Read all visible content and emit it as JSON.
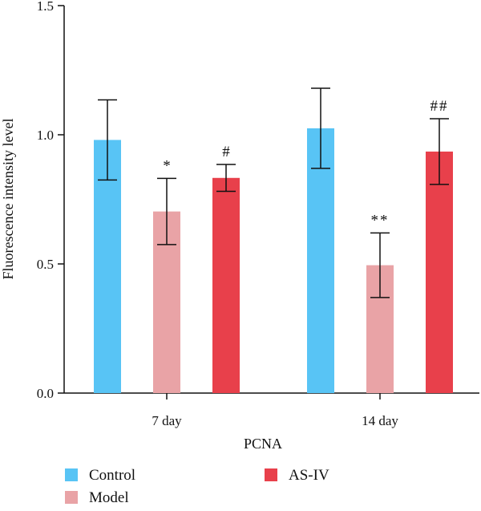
{
  "chart_data": {
    "type": "bar",
    "categories": [
      "7 day",
      "14 day"
    ],
    "series": [
      {
        "name": "Control",
        "values": [
          0.98,
          1.025
        ],
        "errors": [
          0.155,
          0.155
        ],
        "color": "#58C4F5"
      },
      {
        "name": "Model",
        "values": [
          0.703,
          0.495
        ],
        "errors": [
          0.128,
          0.125
        ],
        "color": "#E9A3A6"
      },
      {
        "name": "AS-IV",
        "values": [
          0.833,
          0.935
        ],
        "errors": [
          0.052,
          0.127
        ],
        "color": "#E8404B"
      }
    ],
    "annotations": [
      {
        "category": 0,
        "series": 1,
        "text": "*"
      },
      {
        "category": 0,
        "series": 2,
        "text": "#"
      },
      {
        "category": 1,
        "series": 1,
        "text": "**"
      },
      {
        "category": 1,
        "series": 2,
        "text": "##"
      }
    ],
    "xlabel": "PCNA",
    "ylabel": "Fluorescence intensity level",
    "ylim": [
      0,
      1.5
    ],
    "yticks": [
      "0.0",
      "0.5",
      "1.0",
      "1.5"
    ],
    "ytick_values": [
      0,
      0.5,
      1.0,
      1.5
    ],
    "grid": false,
    "legend_position": "bottom"
  }
}
